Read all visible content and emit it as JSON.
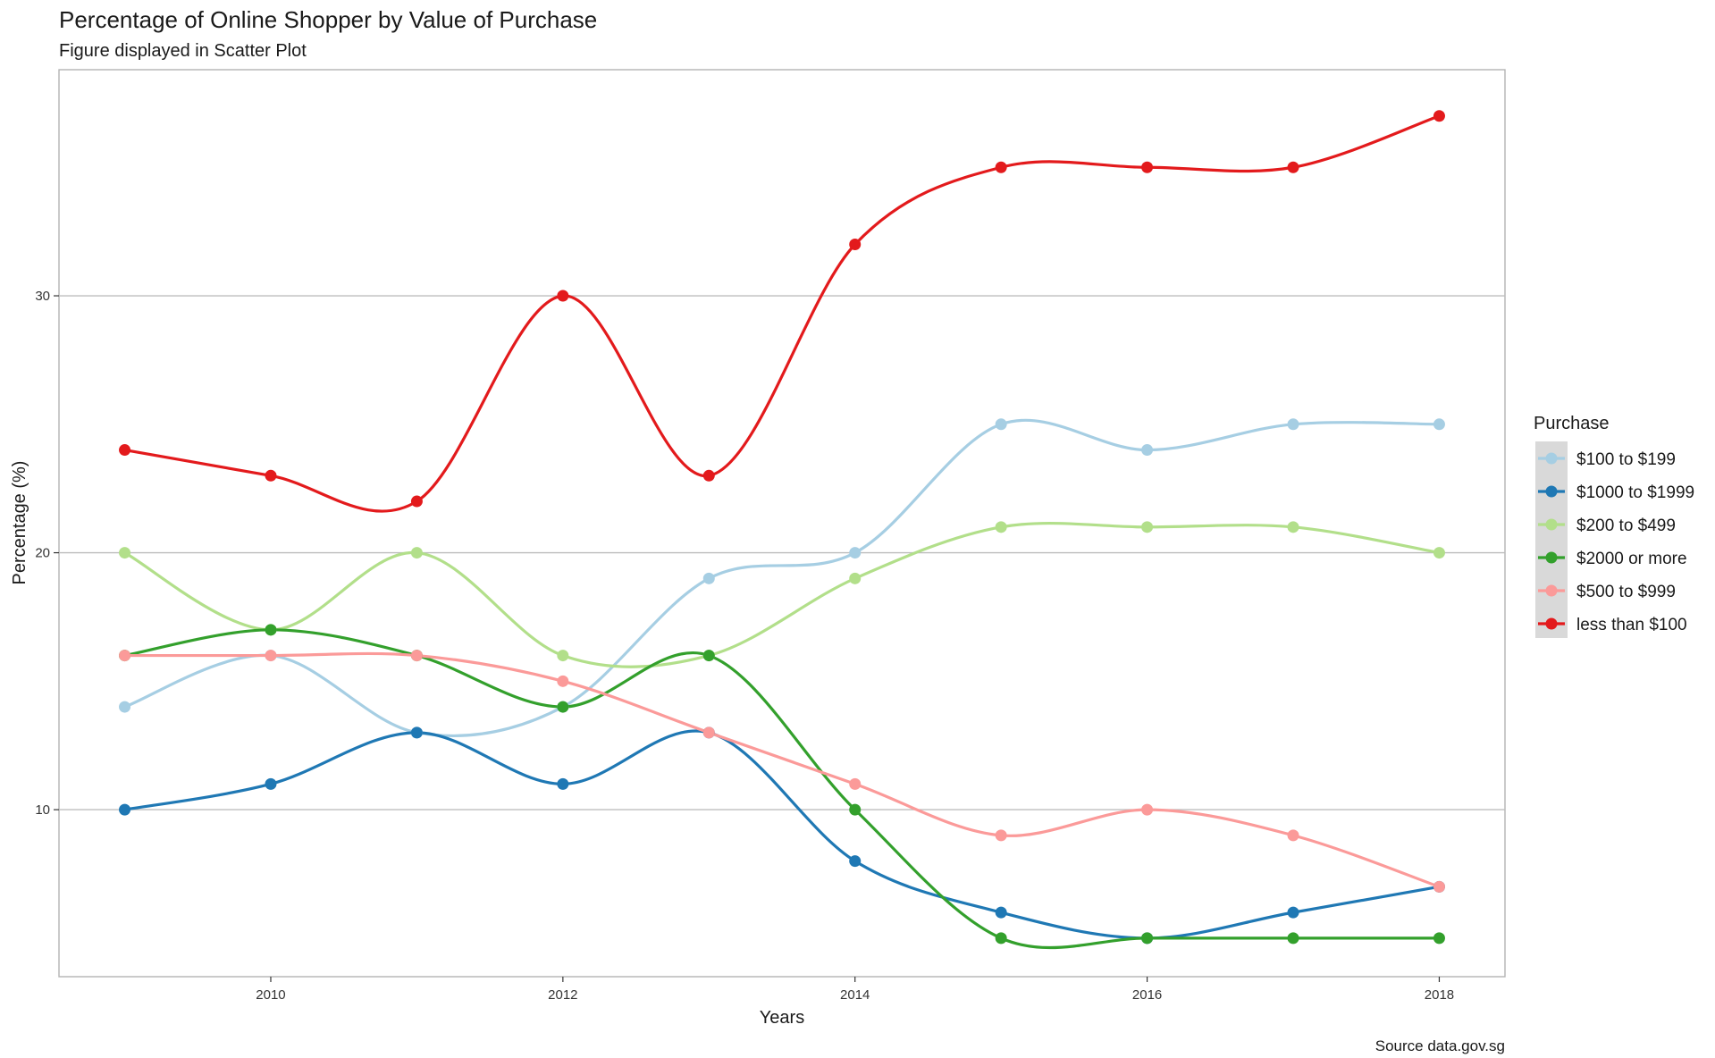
{
  "chart_data": {
    "type": "line",
    "title": "Percentage of Online Shopper by Value of Purchase",
    "subtitle": "Figure displayed in Scatter Plot",
    "xlabel": "Years",
    "ylabel": "Percentage (%)",
    "caption": "Source data.gov.sg",
    "x": [
      2009,
      2010,
      2011,
      2012,
      2013,
      2014,
      2015,
      2016,
      2017,
      2018
    ],
    "xticks": [
      2010,
      2012,
      2014,
      2016,
      2018
    ],
    "yticks": [
      10,
      20,
      30
    ],
    "xlim": [
      2008.55,
      2018.45
    ],
    "ylim": [
      3.5,
      38.8
    ],
    "grid": "horizontal major lines",
    "smoothed": true,
    "legend": {
      "title": "Purchase",
      "position": "right"
    },
    "series": [
      {
        "name": "$100 to $199",
        "color": "#A6CEE3",
        "values": [
          14,
          16,
          13,
          14,
          19,
          20,
          25,
          24,
          25,
          25
        ]
      },
      {
        "name": "$1000 to $1999",
        "color": "#1F78B4",
        "values": [
          10,
          11,
          13,
          11,
          13,
          8,
          6,
          5,
          6,
          7
        ]
      },
      {
        "name": "$200 to $499",
        "color": "#B2DF8A",
        "values": [
          20,
          17,
          20,
          16,
          16,
          19,
          21,
          21,
          21,
          20
        ]
      },
      {
        "name": "$2000 or more",
        "color": "#33A02C",
        "values": [
          16,
          17,
          16,
          14,
          16,
          10,
          5,
          5,
          5,
          5
        ]
      },
      {
        "name": "$500 to $999",
        "color": "#FB9A99",
        "values": [
          16,
          16,
          16,
          15,
          13,
          11,
          9,
          10,
          9,
          7
        ]
      },
      {
        "name": "less than $100",
        "color": "#E31A1C",
        "values": [
          24,
          23,
          22,
          30,
          23,
          32,
          35,
          35,
          35,
          37
        ]
      }
    ]
  }
}
